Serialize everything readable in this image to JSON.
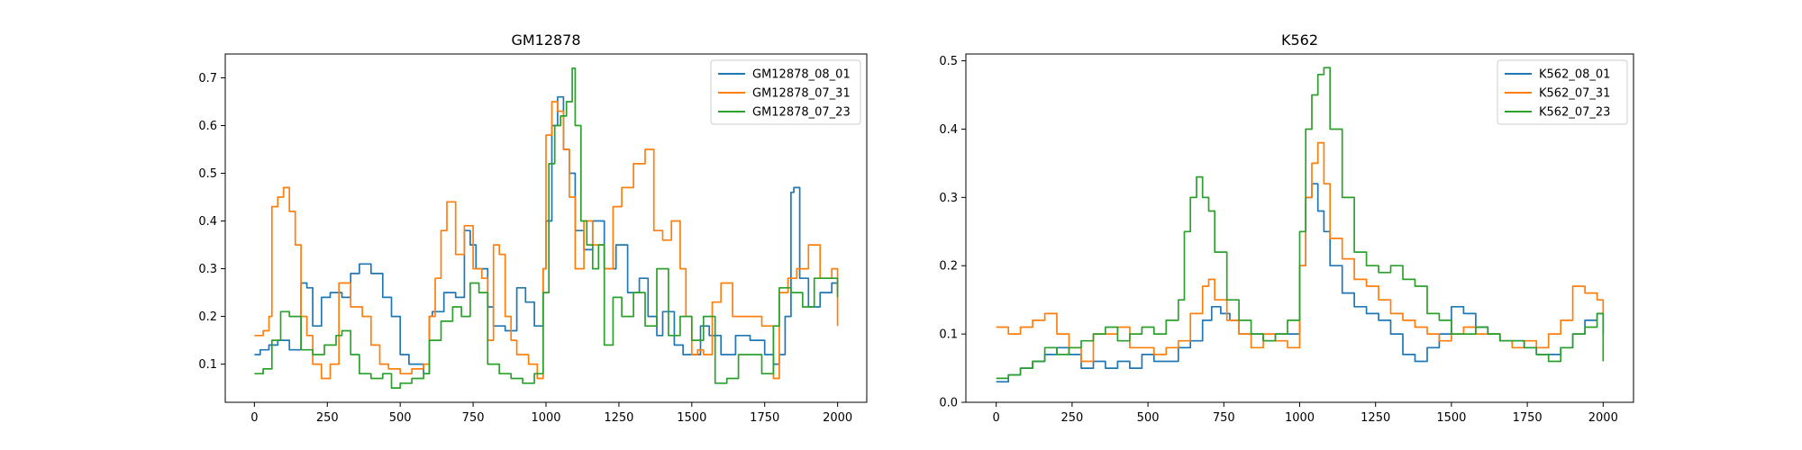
{
  "chart_data": [
    {
      "type": "line",
      "title": "GM12878",
      "xlabel": "",
      "ylabel": "",
      "xlim": [
        -100,
        2100
      ],
      "ylim": [
        0.02,
        0.75
      ],
      "xticks": [
        0,
        250,
        500,
        750,
        1000,
        1250,
        1500,
        1750,
        2000
      ],
      "yticks": [
        0.1,
        0.2,
        0.3,
        0.4,
        0.5,
        0.6,
        0.7
      ],
      "ytick_labels": [
        "0.1",
        "0.2",
        "0.3",
        "0.4",
        "0.5",
        "0.6",
        "0.7"
      ],
      "legend_position": "upper right",
      "grid": false,
      "series": [
        {
          "name": "GM12878_08_01",
          "color": "#1f77b4",
          "x": [
            0,
            20,
            50,
            80,
            120,
            160,
            180,
            200,
            230,
            260,
            300,
            330,
            360,
            400,
            440,
            470,
            500,
            530,
            560,
            580,
            600,
            610,
            650,
            690,
            720,
            740,
            760,
            800,
            820,
            860,
            900,
            930,
            960,
            990,
            1000,
            1020,
            1040,
            1060,
            1080,
            1100,
            1130,
            1160,
            1200,
            1240,
            1280,
            1320,
            1350,
            1380,
            1400,
            1440,
            1470,
            1500,
            1530,
            1560,
            1600,
            1650,
            1700,
            1750,
            1780,
            1800,
            1820,
            1840,
            1850,
            1870,
            1900,
            1940,
            1980,
            2000
          ],
          "y": [
            0.12,
            0.13,
            0.14,
            0.15,
            0.13,
            0.27,
            0.26,
            0.18,
            0.24,
            0.25,
            0.24,
            0.29,
            0.31,
            0.29,
            0.24,
            0.2,
            0.12,
            0.1,
            0.1,
            0.08,
            0.2,
            0.21,
            0.25,
            0.24,
            0.38,
            0.35,
            0.3,
            0.22,
            0.18,
            0.17,
            0.26,
            0.23,
            0.18,
            0.3,
            0.4,
            0.6,
            0.66,
            0.55,
            0.5,
            0.38,
            0.34,
            0.4,
            0.3,
            0.35,
            0.25,
            0.28,
            0.2,
            0.16,
            0.21,
            0.14,
            0.12,
            0.12,
            0.18,
            0.16,
            0.12,
            0.16,
            0.15,
            0.12,
            0.1,
            0.12,
            0.2,
            0.46,
            0.47,
            0.28,
            0.22,
            0.25,
            0.27,
            0.25
          ]
        },
        {
          "name": "GM12878_07_31",
          "color": "#ff7f0e",
          "x": [
            0,
            30,
            50,
            60,
            80,
            100,
            120,
            140,
            160,
            180,
            200,
            230,
            260,
            290,
            330,
            370,
            400,
            430,
            460,
            500,
            540,
            580,
            600,
            620,
            640,
            660,
            690,
            720,
            750,
            780,
            800,
            820,
            840,
            860,
            880,
            900,
            940,
            970,
            990,
            1000,
            1020,
            1040,
            1060,
            1080,
            1100,
            1130,
            1160,
            1200,
            1230,
            1260,
            1300,
            1340,
            1370,
            1400,
            1430,
            1460,
            1480,
            1500,
            1520,
            1540,
            1570,
            1600,
            1640,
            1700,
            1740,
            1780,
            1800,
            1830,
            1860,
            1900,
            1940,
            1980,
            2000
          ],
          "y": [
            0.16,
            0.17,
            0.2,
            0.43,
            0.45,
            0.47,
            0.42,
            0.35,
            0.2,
            0.16,
            0.1,
            0.07,
            0.1,
            0.27,
            0.22,
            0.2,
            0.14,
            0.1,
            0.09,
            0.08,
            0.09,
            0.1,
            0.2,
            0.28,
            0.38,
            0.44,
            0.33,
            0.39,
            0.3,
            0.28,
            0.15,
            0.35,
            0.33,
            0.2,
            0.15,
            0.12,
            0.1,
            0.07,
            0.3,
            0.58,
            0.65,
            0.63,
            0.55,
            0.45,
            0.3,
            0.4,
            0.35,
            0.3,
            0.43,
            0.47,
            0.52,
            0.55,
            0.38,
            0.36,
            0.4,
            0.3,
            0.2,
            0.12,
            0.13,
            0.12,
            0.23,
            0.27,
            0.2,
            0.2,
            0.18,
            0.07,
            0.25,
            0.28,
            0.3,
            0.35,
            0.28,
            0.3,
            0.18
          ]
        },
        {
          "name": "GM12878_07_23",
          "color": "#2ca02c",
          "x": [
            0,
            30,
            60,
            90,
            120,
            160,
            200,
            240,
            280,
            300,
            330,
            360,
            400,
            440,
            470,
            500,
            540,
            580,
            600,
            640,
            680,
            710,
            740,
            770,
            800,
            840,
            880,
            920,
            960,
            990,
            1010,
            1030,
            1050,
            1070,
            1090,
            1100,
            1120,
            1140,
            1160,
            1180,
            1200,
            1230,
            1260,
            1300,
            1340,
            1380,
            1420,
            1460,
            1500,
            1540,
            1580,
            1620,
            1660,
            1700,
            1740,
            1780,
            1800,
            1840,
            1880,
            1920,
            1960,
            2000
          ],
          "y": [
            0.08,
            0.09,
            0.15,
            0.21,
            0.2,
            0.13,
            0.12,
            0.14,
            0.16,
            0.17,
            0.12,
            0.08,
            0.07,
            0.08,
            0.05,
            0.06,
            0.07,
            0.08,
            0.15,
            0.19,
            0.22,
            0.2,
            0.27,
            0.25,
            0.1,
            0.08,
            0.07,
            0.06,
            0.08,
            0.25,
            0.52,
            0.6,
            0.62,
            0.65,
            0.72,
            0.6,
            0.4,
            0.35,
            0.3,
            0.35,
            0.14,
            0.24,
            0.2,
            0.25,
            0.18,
            0.3,
            0.16,
            0.2,
            0.15,
            0.2,
            0.06,
            0.07,
            0.12,
            0.12,
            0.08,
            0.18,
            0.26,
            0.25,
            0.22,
            0.28,
            0.28,
            0.24
          ]
        }
      ]
    },
    {
      "type": "line",
      "title": "K562",
      "xlabel": "",
      "ylabel": "",
      "xlim": [
        -100,
        2100
      ],
      "ylim": [
        0.0,
        0.51
      ],
      "xticks": [
        0,
        250,
        500,
        750,
        1000,
        1250,
        1500,
        1750,
        2000
      ],
      "yticks": [
        0.0,
        0.1,
        0.2,
        0.3,
        0.4,
        0.5
      ],
      "ytick_labels": [
        "0.0",
        "0.1",
        "0.2",
        "0.3",
        "0.4",
        "0.5"
      ],
      "legend_position": "upper right",
      "grid": false,
      "series": [
        {
          "name": "K562_08_01",
          "color": "#1f77b4",
          "x": [
            0,
            40,
            80,
            120,
            160,
            200,
            240,
            280,
            320,
            360,
            400,
            440,
            480,
            520,
            560,
            600,
            640,
            680,
            710,
            740,
            770,
            800,
            840,
            880,
            920,
            960,
            1000,
            1020,
            1040,
            1060,
            1080,
            1100,
            1140,
            1180,
            1220,
            1260,
            1300,
            1340,
            1380,
            1420,
            1460,
            1500,
            1540,
            1580,
            1620,
            1660,
            1700,
            1740,
            1780,
            1820,
            1860,
            1900,
            1940,
            1980,
            2000
          ],
          "y": [
            0.03,
            0.04,
            0.05,
            0.06,
            0.07,
            0.08,
            0.07,
            0.05,
            0.06,
            0.05,
            0.06,
            0.05,
            0.07,
            0.06,
            0.06,
            0.08,
            0.09,
            0.12,
            0.14,
            0.13,
            0.12,
            0.1,
            0.1,
            0.09,
            0.1,
            0.1,
            0.2,
            0.3,
            0.32,
            0.28,
            0.25,
            0.2,
            0.16,
            0.14,
            0.13,
            0.12,
            0.1,
            0.07,
            0.06,
            0.08,
            0.1,
            0.14,
            0.13,
            0.11,
            0.1,
            0.09,
            0.09,
            0.08,
            0.07,
            0.07,
            0.08,
            0.1,
            0.12,
            0.13,
            0.1
          ]
        },
        {
          "name": "K562_07_31",
          "color": "#ff7f0e",
          "x": [
            0,
            40,
            80,
            120,
            160,
            200,
            240,
            280,
            320,
            360,
            400,
            440,
            480,
            520,
            560,
            600,
            640,
            680,
            700,
            720,
            760,
            800,
            840,
            880,
            920,
            960,
            1000,
            1020,
            1040,
            1060,
            1080,
            1100,
            1140,
            1180,
            1220,
            1260,
            1300,
            1340,
            1380,
            1420,
            1460,
            1500,
            1540,
            1580,
            1620,
            1660,
            1700,
            1740,
            1780,
            1820,
            1860,
            1900,
            1940,
            1980,
            2000
          ],
          "y": [
            0.11,
            0.1,
            0.11,
            0.12,
            0.13,
            0.1,
            0.08,
            0.06,
            0.1,
            0.1,
            0.11,
            0.08,
            0.08,
            0.07,
            0.08,
            0.09,
            0.13,
            0.17,
            0.18,
            0.15,
            0.12,
            0.1,
            0.08,
            0.1,
            0.09,
            0.08,
            0.2,
            0.3,
            0.35,
            0.38,
            0.32,
            0.24,
            0.21,
            0.18,
            0.17,
            0.15,
            0.13,
            0.12,
            0.11,
            0.1,
            0.09,
            0.1,
            0.11,
            0.1,
            0.1,
            0.09,
            0.08,
            0.09,
            0.08,
            0.1,
            0.12,
            0.17,
            0.16,
            0.15,
            0.13
          ]
        },
        {
          "name": "K562_07_23",
          "color": "#2ca02c",
          "x": [
            0,
            40,
            80,
            120,
            160,
            200,
            240,
            280,
            320,
            360,
            400,
            440,
            480,
            520,
            560,
            600,
            620,
            640,
            660,
            680,
            700,
            720,
            760,
            800,
            840,
            880,
            920,
            960,
            1000,
            1020,
            1040,
            1060,
            1080,
            1100,
            1140,
            1180,
            1220,
            1260,
            1300,
            1340,
            1380,
            1420,
            1460,
            1500,
            1540,
            1580,
            1620,
            1660,
            1700,
            1740,
            1780,
            1820,
            1860,
            1900,
            1940,
            1980,
            2000
          ],
          "y": [
            0.035,
            0.04,
            0.05,
            0.06,
            0.08,
            0.07,
            0.08,
            0.09,
            0.1,
            0.11,
            0.09,
            0.1,
            0.11,
            0.1,
            0.12,
            0.15,
            0.25,
            0.3,
            0.33,
            0.3,
            0.28,
            0.22,
            0.15,
            0.12,
            0.1,
            0.09,
            0.1,
            0.12,
            0.25,
            0.4,
            0.45,
            0.48,
            0.49,
            0.4,
            0.3,
            0.22,
            0.2,
            0.19,
            0.2,
            0.18,
            0.17,
            0.13,
            0.12,
            0.1,
            0.1,
            0.11,
            0.1,
            0.09,
            0.09,
            0.08,
            0.07,
            0.06,
            0.08,
            0.1,
            0.11,
            0.13,
            0.06
          ]
        }
      ]
    }
  ]
}
